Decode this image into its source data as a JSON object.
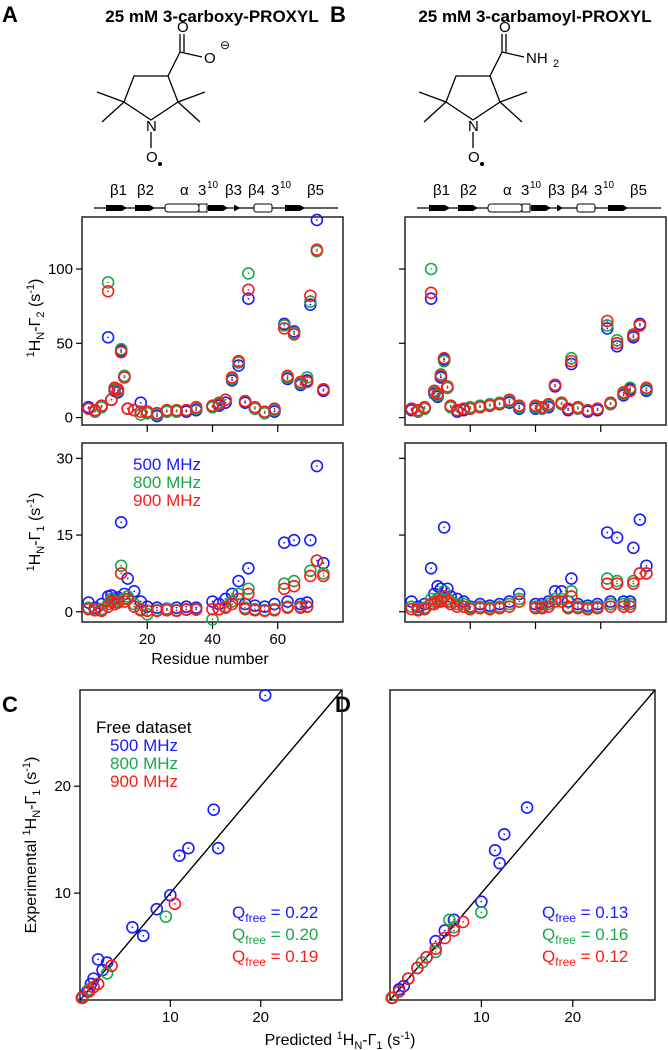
{
  "panels": {
    "A": "A",
    "B": "B",
    "C": "C",
    "D": "D"
  },
  "titles": {
    "A": "25 mM 3-carboxy-PROXYL",
    "B": "25 mM 3-carbamoyl-PROXYL"
  },
  "chem": {
    "O": "O",
    "Ominus": "O",
    "minus": "⊖",
    "N": "N",
    "Orad": "O",
    "NH2": "NH",
    "two": "2"
  },
  "ss_labels": [
    "β1",
    "β2",
    "α",
    "3",
    "10",
    "β3",
    "β4",
    "3",
    "10",
    "β5"
  ],
  "colors": {
    "500": "#1a1aff",
    "800": "#1aa84a",
    "900": "#ff1a1a"
  },
  "legend": {
    "f500": "500 MHz",
    "f800": "800 MHz",
    "f900": "900 MHz",
    "free": "Free dataset"
  },
  "xlabel_top": "Residue number",
  "ylab_g2": {
    "pre": "1",
    "h": "H",
    "sub": "N",
    "mid": "-Γ",
    "s": "2",
    "unit": " (s",
    "sup": "-1",
    "end": ")"
  },
  "ylab_g1": {
    "pre": "1",
    "h": "H",
    "sub": "N",
    "mid": "-Γ",
    "s": "1",
    "unit": " (s",
    "sup": "-1",
    "end": ")"
  },
  "xlab_c": {
    "txt": "Predicted ",
    "pre": "1",
    "h": "H",
    "sub": "N",
    "mid": "-Γ",
    "s": "1",
    "unit": " (s",
    "sup": "-1",
    "end": ")"
  },
  "ylab_c": {
    "txt": "Experimental ",
    "pre": "1",
    "h": "H",
    "sub": "N",
    "mid": "-Γ",
    "s": "1",
    "unit": " (s",
    "sup": "-1",
    "end": ")"
  },
  "qC": [
    {
      "q": "Q",
      "sub": "free",
      "val": " = 0.22"
    },
    {
      "q": "Q",
      "sub": "free",
      "val": " = 0.20"
    },
    {
      "q": "Q",
      "sub": "free",
      "val": " = 0.19"
    }
  ],
  "qD": [
    {
      "q": "Q",
      "sub": "free",
      "val": " = 0.13"
    },
    {
      "q": "Q",
      "sub": "free",
      "val": " = 0.16"
    },
    {
      "q": "Q",
      "sub": "free",
      "val": " = 0.12"
    }
  ],
  "chart_data": [
    {
      "id": "A-gamma2",
      "type": "scatter",
      "xlim": [
        0,
        80
      ],
      "ylim": [
        -5,
        135
      ],
      "xticks": [
        20,
        40,
        60
      ],
      "yticks": [
        0,
        50,
        100
      ],
      "residues": [
        2,
        4,
        6,
        8,
        9,
        10,
        11,
        12,
        13,
        14,
        16,
        18,
        20,
        23,
        26,
        29,
        32,
        35,
        40,
        42,
        44,
        46,
        48,
        50,
        51,
        53,
        56,
        59,
        62,
        63,
        65,
        67,
        69,
        70,
        72,
        74
      ],
      "series": [
        {
          "name": "500 MHz",
          "values": [
            7,
            4,
            7,
            54,
            12,
            18,
            17,
            45,
            28,
            6,
            5,
            10,
            3,
            1,
            4,
            4,
            4,
            5,
            7,
            8,
            10,
            25,
            35,
            10,
            80,
            6,
            3,
            4,
            63,
            26,
            58,
            22,
            25,
            76,
            133,
            18
          ]
        },
        {
          "name": "800 MHz",
          "values": [
            6,
            4,
            7,
            91,
            12,
            19,
            18,
            46,
            28,
            6,
            5,
            2,
            3,
            2,
            4,
            4,
            5,
            6,
            7,
            10,
            12,
            26,
            37,
            11,
            97,
            6,
            3,
            5,
            62,
            27,
            57,
            23,
            27,
            78,
            112,
            19
          ]
        },
        {
          "name": "900 MHz",
          "values": [
            6,
            5,
            8,
            85,
            12,
            20,
            19,
            44,
            27,
            6,
            5,
            4,
            4,
            3,
            5,
            5,
            5,
            7,
            8,
            9,
            12,
            27,
            38,
            11,
            86,
            7,
            4,
            6,
            60,
            28,
            56,
            24,
            24,
            82,
            113,
            19
          ]
        }
      ]
    },
    {
      "id": "B-gamma2",
      "type": "scatter",
      "xlim": [
        0,
        80
      ],
      "ylim": [
        -5,
        135
      ],
      "xticks": [
        20,
        40,
        60
      ],
      "yticks": [
        0,
        50,
        100
      ],
      "residues": [
        2,
        4,
        6,
        8,
        9,
        10,
        11,
        12,
        13,
        14,
        16,
        18,
        20,
        23,
        26,
        29,
        32,
        35,
        40,
        42,
        44,
        46,
        48,
        50,
        51,
        53,
        56,
        59,
        62,
        63,
        65,
        67,
        69,
        70,
        72,
        74
      ],
      "series": [
        {
          "name": "500 MHz",
          "values": [
            5,
            4,
            6,
            80,
            16,
            14,
            27,
            39,
            20,
            7,
            4,
            5,
            6,
            7,
            8,
            9,
            10,
            6,
            6,
            6,
            7,
            21,
            9,
            5,
            36,
            6,
            4,
            5,
            60,
            9,
            48,
            15,
            19,
            54,
            63,
            18
          ]
        },
        {
          "name": "800 MHz",
          "values": [
            6,
            4,
            6,
            100,
            17,
            15,
            29,
            38,
            20,
            7,
            5,
            6,
            7,
            8,
            9,
            10,
            11,
            7,
            7,
            6,
            8,
            22,
            9,
            6,
            40,
            6,
            5,
            6,
            62,
            9,
            52,
            16,
            20,
            56,
            62,
            19
          ]
        },
        {
          "name": "900 MHz",
          "values": [
            6,
            5,
            7,
            84,
            18,
            16,
            28,
            40,
            21,
            8,
            5,
            6,
            6,
            7,
            8,
            9,
            12,
            8,
            8,
            7,
            9,
            22,
            10,
            6,
            38,
            7,
            5,
            6,
            65,
            10,
            50,
            17,
            18,
            55,
            62,
            20
          ]
        }
      ]
    },
    {
      "id": "A-gamma1",
      "type": "scatter",
      "xlim": [
        0,
        80
      ],
      "ylim": [
        -2,
        33
      ],
      "xticks": [
        20,
        40,
        60
      ],
      "yticks": [
        0,
        15,
        30
      ],
      "xlabel": "Residue number",
      "residues": [
        2,
        4,
        6,
        8,
        9,
        10,
        11,
        12,
        13,
        14,
        16,
        18,
        20,
        23,
        26,
        29,
        32,
        35,
        40,
        42,
        44,
        46,
        48,
        50,
        51,
        53,
        56,
        59,
        62,
        63,
        65,
        67,
        69,
        70,
        72,
        74
      ],
      "series": [
        {
          "name": "500 MHz",
          "values": [
            1.8,
            0.8,
            1.5,
            3,
            3.2,
            2.5,
            2.8,
            17.5,
            3.5,
            6.5,
            4,
            2,
            1,
            0.8,
            0.6,
            0.8,
            1,
            0.8,
            2,
            1.5,
            2.5,
            3.5,
            6,
            1.5,
            8.5,
            1.2,
            1,
            1.5,
            13.5,
            2,
            14,
            1.5,
            1.8,
            14,
            28.5,
            9.5
          ]
        },
        {
          "name": "800 MHz",
          "values": [
            0.8,
            0.4,
            0.5,
            1.5,
            2.5,
            2,
            2,
            9,
            2.5,
            3,
            1.5,
            0.5,
            -0.5,
            0.3,
            0.5,
            0.3,
            0.5,
            0.5,
            -1.5,
            0.5,
            1,
            2,
            3.5,
            0.8,
            4.5,
            0.5,
            0.3,
            0.5,
            5.5,
            1,
            6,
            1,
            1,
            8,
            10,
            7.5
          ]
        },
        {
          "name": "900 MHz",
          "values": [
            0.5,
            0.3,
            0.2,
            1,
            2,
            1.5,
            1.8,
            7.5,
            2,
            2.5,
            1,
            0.3,
            0.2,
            0.2,
            0.3,
            0.2,
            0.4,
            0.4,
            0.5,
            0.5,
            0.8,
            1.5,
            2.5,
            0.5,
            3.5,
            0.3,
            0.2,
            0.3,
            4.5,
            0.8,
            5,
            0.8,
            1,
            7,
            10,
            7
          ]
        }
      ]
    },
    {
      "id": "B-gamma1",
      "type": "scatter",
      "xlim": [
        0,
        80
      ],
      "ylim": [
        -2,
        33
      ],
      "xticks": [
        20,
        40,
        60
      ],
      "yticks": [
        0,
        15,
        30
      ],
      "residues": [
        2,
        4,
        6,
        8,
        9,
        10,
        11,
        12,
        13,
        14,
        16,
        18,
        20,
        23,
        26,
        29,
        32,
        35,
        40,
        42,
        44,
        46,
        48,
        50,
        51,
        53,
        56,
        59,
        62,
        63,
        65,
        67,
        69,
        70,
        72,
        74
      ],
      "series": [
        {
          "name": "500 MHz",
          "values": [
            2,
            1,
            1.5,
            8.5,
            3.5,
            5,
            4.5,
            16.5,
            4.5,
            3,
            2.5,
            2,
            1,
            1.5,
            1.2,
            1.5,
            2,
            3.5,
            1.5,
            1.5,
            2,
            4,
            4,
            2,
            6.5,
            1.5,
            1.2,
            1.5,
            15.5,
            2,
            14.5,
            2,
            2,
            12.5,
            18,
            9
          ]
        },
        {
          "name": "800 MHz",
          "values": [
            1,
            0.5,
            0.8,
            2.5,
            2,
            2.5,
            2.5,
            4,
            2.5,
            2,
            1.5,
            1.5,
            0.8,
            1,
            0.8,
            1,
            1.5,
            2.5,
            1,
            1,
            1.5,
            2.5,
            2.5,
            1,
            4,
            1,
            0.8,
            1,
            6.5,
            1.5,
            6,
            1.5,
            1.5,
            6,
            7.5,
            7.5
          ]
        },
        {
          "name": "900 MHz",
          "values": [
            0.5,
            0.3,
            0.5,
            1.5,
            1.5,
            2,
            2,
            3,
            2,
            1.5,
            1,
            1,
            0.5,
            0.7,
            0.5,
            0.7,
            1,
            2,
            0.7,
            0.7,
            1,
            2,
            2,
            0.7,
            3,
            0.7,
            0.5,
            0.7,
            5.5,
            1,
            5.5,
            1,
            1,
            5.5,
            7.5,
            7.5
          ]
        }
      ]
    },
    {
      "id": "C",
      "type": "scatter",
      "xlim": [
        0,
        29
      ],
      "ylim": [
        0,
        29
      ],
      "xticks": [
        10,
        20
      ],
      "yticks": [
        10,
        20
      ],
      "diagonal": true,
      "series": [
        {
          "name": "500 MHz",
          "points": [
            [
              0.3,
              0.3
            ],
            [
              0.8,
              0.8
            ],
            [
              1.2,
              1.5
            ],
            [
              1.5,
              2
            ],
            [
              2.5,
              2.8
            ],
            [
              2,
              3.8
            ],
            [
              3,
              3.5
            ],
            [
              5.8,
              6.8
            ],
            [
              7,
              6
            ],
            [
              8.5,
              8.5
            ],
            [
              10,
              9.8
            ],
            [
              11,
              13.5
            ],
            [
              12,
              14.2
            ],
            [
              14.8,
              17.8
            ],
            [
              15.3,
              14.2
            ],
            [
              20.5,
              28.5
            ]
          ]
        },
        {
          "name": "800 MHz",
          "points": [
            [
              0.3,
              0.2
            ],
            [
              1,
              1
            ],
            [
              1.5,
              1.2
            ],
            [
              2,
              1.5
            ],
            [
              3,
              2.5
            ],
            [
              9.5,
              7.8
            ]
          ]
        },
        {
          "name": "900 MHz",
          "points": [
            [
              0.2,
              0.2
            ],
            [
              1,
              0.8
            ],
            [
              1.5,
              1.2
            ],
            [
              2,
              1.5
            ],
            [
              3.5,
              3.2
            ],
            [
              10.5,
              9
            ]
          ]
        }
      ]
    },
    {
      "id": "D",
      "type": "scatter",
      "xlim": [
        0,
        29
      ],
      "ylim": [
        0,
        29
      ],
      "xticks": [
        10,
        20
      ],
      "yticks": [],
      "diagonal": true,
      "series": [
        {
          "name": "500 MHz",
          "points": [
            [
              0.2,
              0.2
            ],
            [
              1,
              1
            ],
            [
              1.5,
              1.3
            ],
            [
              2,
              2
            ],
            [
              3,
              3
            ],
            [
              4,
              4
            ],
            [
              5,
              5.5
            ],
            [
              6,
              6.5
            ],
            [
              7,
              7.5
            ],
            [
              10,
              9.2
            ],
            [
              11.5,
              14
            ],
            [
              12,
              12.8
            ],
            [
              12.5,
              15.5
            ],
            [
              15,
              18
            ]
          ]
        },
        {
          "name": "800 MHz",
          "points": [
            [
              0.3,
              0.2
            ],
            [
              1,
              0.8
            ],
            [
              2,
              2
            ],
            [
              3.5,
              3.5
            ],
            [
              5,
              4.5
            ],
            [
              6.5,
              7.5
            ],
            [
              7,
              6.8
            ],
            [
              10,
              8.2
            ]
          ]
        },
        {
          "name": "900 MHz",
          "points": [
            [
              0.2,
              0.2
            ],
            [
              1,
              0.8
            ],
            [
              2,
              2
            ],
            [
              3,
              3
            ],
            [
              4,
              4
            ],
            [
              5,
              4.8
            ],
            [
              6,
              5.8
            ],
            [
              7,
              6.5
            ],
            [
              8,
              7.3
            ]
          ]
        }
      ]
    }
  ]
}
